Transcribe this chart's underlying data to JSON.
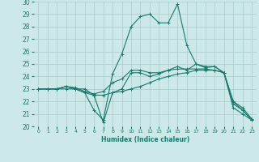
{
  "title": "",
  "xlabel": "Humidex (Indice chaleur)",
  "ylabel": "",
  "bg_color": "#cce8e8",
  "grid_color": "#aacccc",
  "line_color": "#1a7a6e",
  "xlim": [
    -0.5,
    23.5
  ],
  "ylim": [
    20,
    30
  ],
  "xticks": [
    0,
    1,
    2,
    3,
    4,
    5,
    6,
    7,
    8,
    9,
    10,
    11,
    12,
    13,
    14,
    15,
    16,
    17,
    18,
    19,
    20,
    21,
    22,
    23
  ],
  "yticks": [
    20,
    21,
    22,
    23,
    24,
    25,
    26,
    27,
    28,
    29,
    30
  ],
  "lines": [
    {
      "x": [
        0,
        1,
        2,
        3,
        4,
        5,
        6,
        7,
        8,
        9,
        10,
        11,
        12,
        13,
        14,
        15,
        16,
        17,
        18,
        19,
        20,
        21,
        22,
        23
      ],
      "y": [
        23,
        23,
        23,
        23,
        23,
        23,
        22.5,
        20.3,
        22.7,
        23,
        24.3,
        24.3,
        24.0,
        24.2,
        24.5,
        24.8,
        24.5,
        25.0,
        24.8,
        24.8,
        24.3,
        21.5,
        21.0,
        20.5
      ]
    },
    {
      "x": [
        0,
        1,
        2,
        3,
        4,
        5,
        6,
        7,
        8,
        9,
        10,
        11,
        12,
        13,
        14,
        15,
        16,
        17,
        18,
        19,
        20,
        21,
        22,
        23
      ],
      "y": [
        23,
        23,
        23,
        23.2,
        23,
        22.7,
        21.3,
        20.5,
        24.2,
        25.8,
        28.0,
        28.8,
        29.0,
        28.3,
        28.3,
        29.8,
        26.5,
        25.0,
        24.7,
        24.8,
        24.3,
        21.8,
        21.3,
        20.5
      ]
    },
    {
      "x": [
        0,
        1,
        2,
        3,
        4,
        5,
        6,
        7,
        8,
        9,
        10,
        11,
        12,
        13,
        14,
        15,
        16,
        17,
        18,
        19,
        20,
        21,
        22,
        23
      ],
      "y": [
        23,
        23,
        23,
        23.2,
        23.1,
        22.8,
        22.6,
        22.8,
        23.5,
        23.8,
        24.5,
        24.5,
        24.3,
        24.3,
        24.5,
        24.6,
        24.6,
        24.6,
        24.6,
        24.5,
        24.3,
        22.0,
        21.5,
        20.6
      ]
    },
    {
      "x": [
        0,
        1,
        2,
        3,
        4,
        5,
        6,
        7,
        8,
        9,
        10,
        11,
        12,
        13,
        14,
        15,
        16,
        17,
        18,
        19,
        20,
        21,
        22,
        23
      ],
      "y": [
        23,
        23,
        23,
        23.2,
        23,
        22.7,
        22.5,
        22.5,
        22.7,
        22.8,
        23.0,
        23.2,
        23.5,
        23.8,
        24.0,
        24.2,
        24.3,
        24.5,
        24.5,
        24.5,
        24.3,
        22.0,
        21.3,
        20.5
      ]
    }
  ]
}
